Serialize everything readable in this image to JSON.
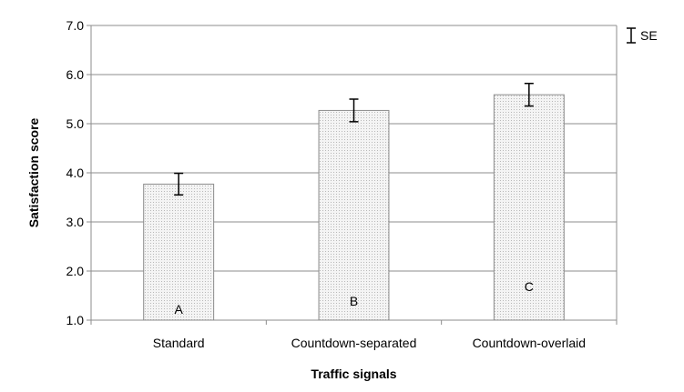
{
  "chart_data": {
    "type": "bar",
    "title": "",
    "xlabel": "Traffic signals",
    "ylabel": "Satisfaction score",
    "categories": [
      "Standard",
      "Countdown-separated",
      "Countdown-overlaid"
    ],
    "values": [
      3.77,
      5.27,
      5.59
    ],
    "errors": [
      0.22,
      0.23,
      0.23
    ],
    "bar_labels": [
      "A",
      "B",
      "C"
    ],
    "ylim": [
      1.0,
      7.0
    ],
    "yticks": [
      "1.0",
      "2.0",
      "3.0",
      "4.0",
      "5.0",
      "6.0",
      "7.0"
    ],
    "grid": "horizontal",
    "legend": {
      "label": "SE",
      "placement": "top-right"
    },
    "colors": {
      "bar_fill": "#f4f4f4",
      "bar_dots": "#b8b8b8",
      "bar_stroke": "#8c8c8c",
      "grid": "#8c8c8c",
      "error_bar": "#000000"
    }
  }
}
